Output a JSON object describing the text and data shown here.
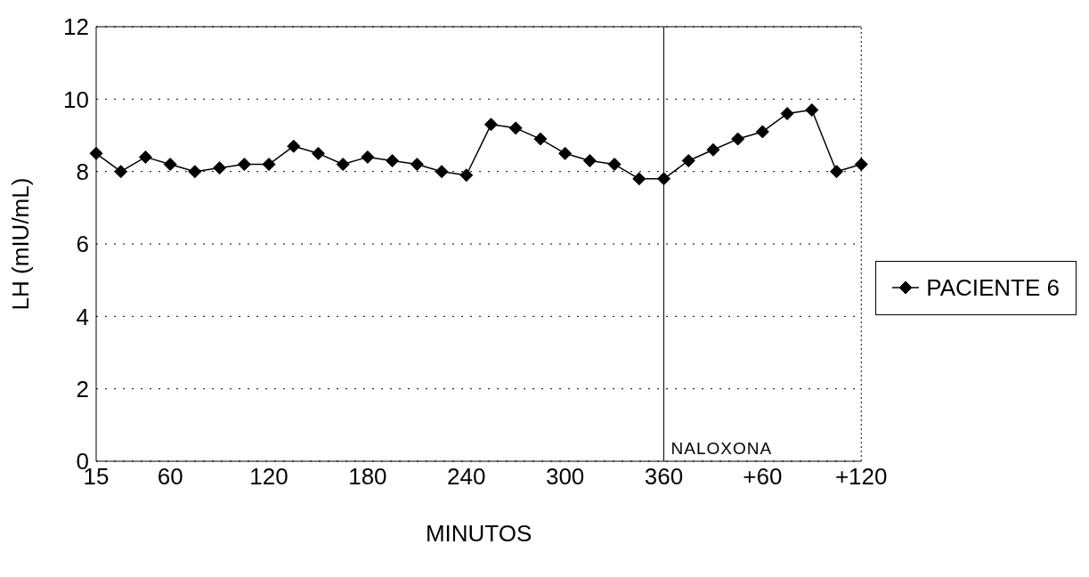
{
  "chart_data": {
    "type": "line",
    "xlabel": "MINUTOS",
    "ylabel": "LH (mIU/mL)",
    "categories": [
      "15",
      null,
      null,
      "60",
      null,
      null,
      null,
      "120",
      null,
      null,
      null,
      "180",
      null,
      null,
      null,
      "240",
      null,
      null,
      null,
      "300",
      null,
      null,
      null,
      "360",
      null,
      null,
      null,
      "+60",
      null,
      null,
      null,
      "+120"
    ],
    "series": [
      {
        "name": "PACIENTE 6",
        "color": "#000000",
        "values": [
          8.5,
          8.0,
          8.4,
          8.2,
          8.0,
          8.1,
          8.2,
          8.2,
          8.7,
          8.5,
          8.2,
          8.4,
          8.3,
          8.2,
          8.0,
          7.9,
          9.3,
          9.2,
          8.9,
          8.5,
          8.3,
          8.2,
          7.8,
          7.8,
          8.3,
          8.6,
          8.9,
          9.1,
          9.6,
          9.7,
          8.0,
          8.2
        ]
      }
    ],
    "ylim": [
      0,
      12
    ],
    "yticks": [
      0,
      2,
      4,
      6,
      8,
      10,
      12
    ],
    "grid": "y",
    "legend": "right",
    "marker": "diamond",
    "line_style": "solid",
    "ref_lines": [
      {
        "axis": "x",
        "value": "360",
        "label": "NALOXONA",
        "color": "#000000"
      }
    ]
  }
}
